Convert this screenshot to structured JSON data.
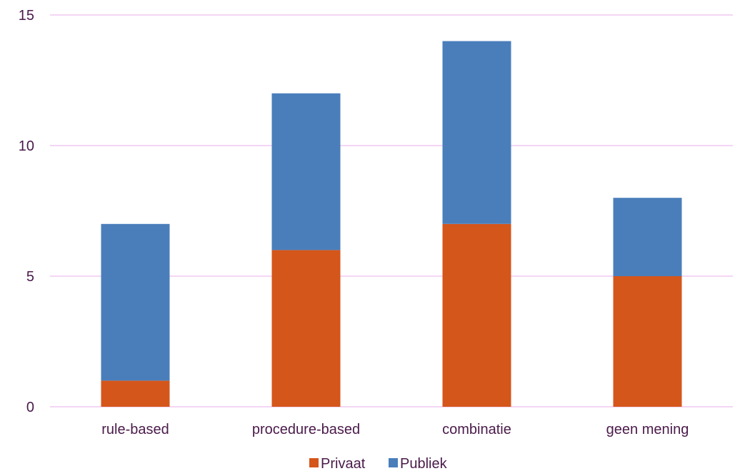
{
  "chart_data": {
    "type": "bar",
    "stacked": true,
    "categories": [
      "rule-based",
      "procedure-based",
      "combinatie",
      "geen mening"
    ],
    "series": [
      {
        "name": "Privaat",
        "values": [
          1,
          6,
          7,
          5
        ],
        "color": "#d4561b"
      },
      {
        "name": "Publiek",
        "values": [
          6,
          6,
          7,
          3
        ],
        "color": "#4a7ebb"
      }
    ],
    "ylim": [
      0,
      15
    ],
    "yticks": [
      0,
      5,
      10,
      15
    ],
    "grid": true,
    "gridline_color": "#f0c8f0",
    "text_color": "#4a1a4a",
    "legend_position": "bottom",
    "title": "",
    "xlabel": "",
    "ylabel": ""
  }
}
